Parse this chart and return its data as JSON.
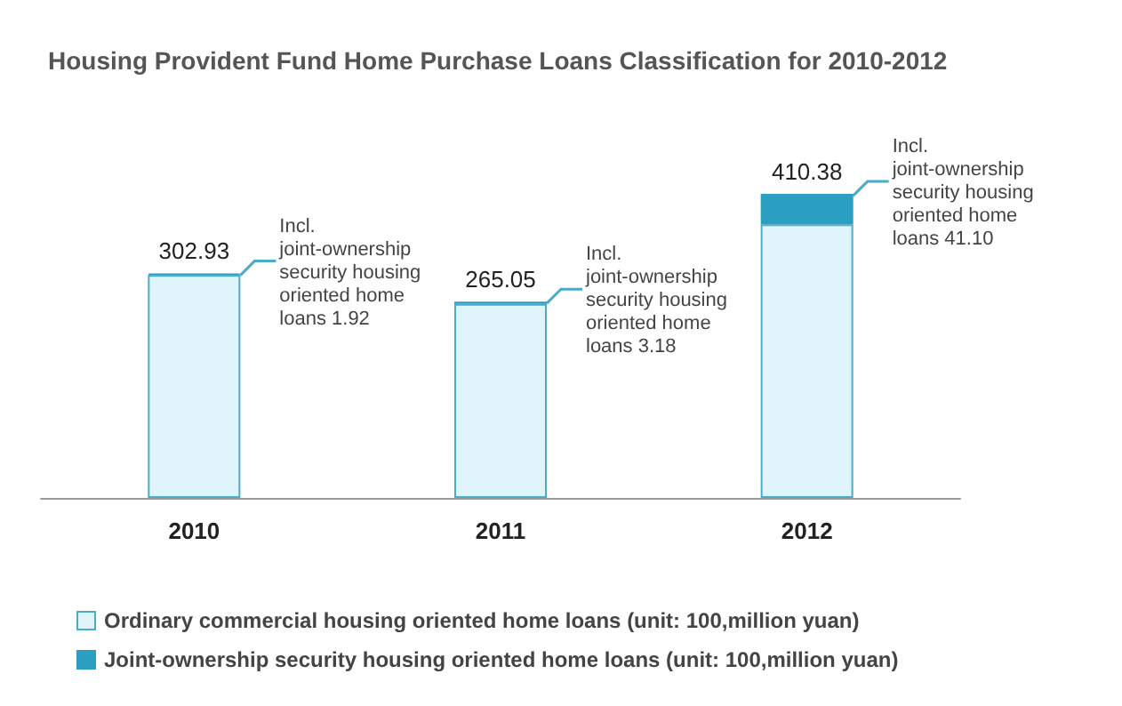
{
  "chart_data": {
    "type": "bar",
    "title": "Housing Provident Fund Home Purchase Loans Classification for 2010-2012",
    "categories": [
      "2010",
      "2011",
      "2012"
    ],
    "stacked": true,
    "series": [
      {
        "name": "Ordinary commercial housing oriented home loans (unit: 100,million yuan)",
        "color": "#dff5fb",
        "values": [
          301.01,
          261.87,
          369.28
        ]
      },
      {
        "name": "Joint-ownership security housing oriented home loans (unit: 100,million yuan)",
        "color": "#2a9fc2",
        "values": [
          1.92,
          3.18,
          41.1
        ],
        "value_labels": [
          "Incl. joint-ownership security housing oriented home loans 1.92",
          "Incl. joint-ownership security housing oriented home loans 3.18",
          "Incl. joint-ownership security housing oriented home loans 41.10"
        ]
      }
    ],
    "totals": [
      "302.93",
      "265.05",
      "410.38"
    ],
    "legend": "bottom left"
  }
}
